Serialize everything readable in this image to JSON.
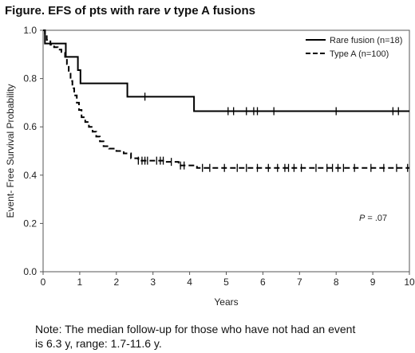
{
  "figure": {
    "title_prefix": "Figure. EFS of pts with rare ",
    "title_italic": "v",
    "title_suffix": " type A fusions",
    "note_line1": "Note: The median follow-up for those who have not had an event",
    "note_line2": "is 6.3 y, range: 1.7-11.6 y."
  },
  "chart_data": {
    "type": "line",
    "subtype": "kaplan-meier",
    "xlabel": "Years",
    "ylabel": "Event- Free Survival Probability",
    "xlim": [
      0,
      10
    ],
    "ylim": [
      0,
      1
    ],
    "x_ticks": [
      "0",
      "1",
      "2",
      "3",
      "4",
      "5",
      "6",
      "7",
      "8",
      "9",
      "10"
    ],
    "y_ticks": [
      "0.0",
      "0.2",
      "0.4",
      "0.6",
      "0.8",
      "1.0"
    ],
    "annotation_p_italic": "P",
    "annotation_p_value": " = .07",
    "legend_position": "top-right",
    "series": [
      {
        "name": "Rare fusion (n=18)",
        "style": "solid",
        "color": "#000000",
        "steps": [
          [
            0,
            1.0
          ],
          [
            0.05,
            0.945
          ],
          [
            0.62,
            0.89
          ],
          [
            0.95,
            0.835
          ],
          [
            1.02,
            0.78
          ],
          [
            2.3,
            0.725
          ],
          [
            4.12,
            0.665
          ],
          [
            10,
            0.665
          ]
        ],
        "censored": [
          [
            2.78,
            0.725
          ],
          [
            5.05,
            0.665
          ],
          [
            5.2,
            0.665
          ],
          [
            5.55,
            0.665
          ],
          [
            5.75,
            0.665
          ],
          [
            5.85,
            0.665
          ],
          [
            6.3,
            0.665
          ],
          [
            8.0,
            0.665
          ],
          [
            9.55,
            0.665
          ],
          [
            9.7,
            0.665
          ]
        ]
      },
      {
        "name": "Type A (n=100)",
        "style": "dashed",
        "color": "#000000",
        "steps": [
          [
            0,
            1.0
          ],
          [
            0.05,
            0.98
          ],
          [
            0.1,
            0.96
          ],
          [
            0.2,
            0.94
          ],
          [
            0.3,
            0.93
          ],
          [
            0.4,
            0.92
          ],
          [
            0.5,
            0.91
          ],
          [
            0.6,
            0.89
          ],
          [
            0.65,
            0.86
          ],
          [
            0.7,
            0.82
          ],
          [
            0.75,
            0.79
          ],
          [
            0.8,
            0.76
          ],
          [
            0.85,
            0.73
          ],
          [
            0.92,
            0.7
          ],
          [
            0.98,
            0.67
          ],
          [
            1.05,
            0.64
          ],
          [
            1.15,
            0.62
          ],
          [
            1.25,
            0.6
          ],
          [
            1.35,
            0.58
          ],
          [
            1.45,
            0.56
          ],
          [
            1.55,
            0.54
          ],
          [
            1.65,
            0.52
          ],
          [
            1.8,
            0.51
          ],
          [
            2.0,
            0.5
          ],
          [
            2.2,
            0.49
          ],
          [
            2.4,
            0.47
          ],
          [
            2.6,
            0.46
          ],
          [
            3.3,
            0.455
          ],
          [
            3.7,
            0.44
          ],
          [
            4.2,
            0.43
          ],
          [
            10,
            0.43
          ]
        ],
        "censored": [
          [
            2.6,
            0.46
          ],
          [
            2.7,
            0.46
          ],
          [
            2.78,
            0.46
          ],
          [
            2.85,
            0.46
          ],
          [
            3.1,
            0.46
          ],
          [
            3.2,
            0.46
          ],
          [
            3.28,
            0.46
          ],
          [
            3.5,
            0.455
          ],
          [
            3.75,
            0.44
          ],
          [
            3.85,
            0.44
          ],
          [
            4.35,
            0.43
          ],
          [
            4.55,
            0.43
          ],
          [
            4.95,
            0.43
          ],
          [
            5.3,
            0.43
          ],
          [
            5.55,
            0.43
          ],
          [
            5.85,
            0.43
          ],
          [
            6.15,
            0.43
          ],
          [
            6.4,
            0.43
          ],
          [
            6.6,
            0.43
          ],
          [
            6.7,
            0.43
          ],
          [
            6.85,
            0.43
          ],
          [
            7.05,
            0.43
          ],
          [
            7.45,
            0.43
          ],
          [
            7.75,
            0.43
          ],
          [
            7.9,
            0.43
          ],
          [
            8.05,
            0.43
          ],
          [
            8.2,
            0.43
          ],
          [
            8.5,
            0.43
          ],
          [
            8.95,
            0.43
          ],
          [
            9.3,
            0.43
          ],
          [
            9.65,
            0.43
          ],
          [
            9.95,
            0.43
          ]
        ]
      }
    ]
  }
}
